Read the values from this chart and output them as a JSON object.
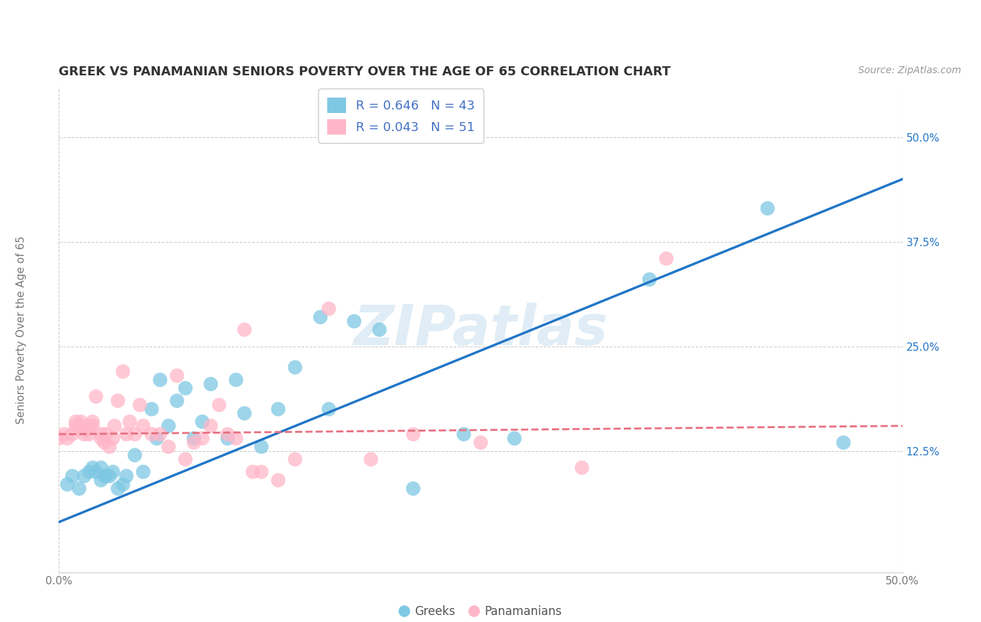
{
  "title": "GREEK VS PANAMANIAN SENIORS POVERTY OVER THE AGE OF 65 CORRELATION CHART",
  "source": "Source: ZipAtlas.com",
  "ylabel": "Seniors Poverty Over the Age of 65",
  "xlim": [
    0.0,
    0.5
  ],
  "ylim": [
    -0.02,
    0.56
  ],
  "xticks": [
    0.0,
    0.1,
    0.2,
    0.3,
    0.4,
    0.5
  ],
  "yticks": [
    0.125,
    0.25,
    0.375,
    0.5
  ],
  "xticklabels": [
    "0.0%",
    "",
    "",
    "",
    "",
    "50.0%"
  ],
  "yticklabels": [
    "12.5%",
    "25.0%",
    "37.5%",
    "50.0%"
  ],
  "greek_color": "#7ec8e3",
  "panamanian_color": "#ffb6c8",
  "greek_line_color": "#2176c7",
  "panamanian_line_color": "#e87080",
  "R_greek": 0.646,
  "N_greek": 43,
  "R_panamanian": 0.043,
  "N_panamanian": 51,
  "watermark": "ZIPatlas",
  "background_color": "#ffffff",
  "grid_color": "#cccccc",
  "legend_text_color": "#4472c4",
  "greek_x": [
    0.005,
    0.008,
    0.012,
    0.015,
    0.018,
    0.02,
    0.022,
    0.025,
    0.025,
    0.027,
    0.028,
    0.03,
    0.032,
    0.035,
    0.038,
    0.04,
    0.045,
    0.05,
    0.055,
    0.058,
    0.06,
    0.065,
    0.07,
    0.075,
    0.08,
    0.085,
    0.09,
    0.1,
    0.105,
    0.11,
    0.12,
    0.13,
    0.14,
    0.155,
    0.16,
    0.175,
    0.19,
    0.21,
    0.24,
    0.27,
    0.35,
    0.42,
    0.465
  ],
  "greek_y": [
    0.085,
    0.095,
    0.08,
    0.095,
    0.1,
    0.105,
    0.1,
    0.09,
    0.105,
    0.095,
    0.095,
    0.095,
    0.1,
    0.08,
    0.085,
    0.095,
    0.12,
    0.1,
    0.175,
    0.14,
    0.21,
    0.155,
    0.185,
    0.2,
    0.14,
    0.16,
    0.205,
    0.14,
    0.21,
    0.17,
    0.13,
    0.175,
    0.225,
    0.285,
    0.175,
    0.28,
    0.27,
    0.08,
    0.145,
    0.14,
    0.33,
    0.415,
    0.135
  ],
  "panamanian_x": [
    0.0,
    0.003,
    0.005,
    0.008,
    0.01,
    0.01,
    0.012,
    0.013,
    0.015,
    0.015,
    0.018,
    0.018,
    0.02,
    0.02,
    0.022,
    0.025,
    0.025,
    0.027,
    0.028,
    0.03,
    0.032,
    0.033,
    0.035,
    0.038,
    0.04,
    0.042,
    0.045,
    0.048,
    0.05,
    0.055,
    0.06,
    0.065,
    0.07,
    0.075,
    0.08,
    0.085,
    0.09,
    0.095,
    0.1,
    0.105,
    0.11,
    0.115,
    0.12,
    0.13,
    0.14,
    0.16,
    0.185,
    0.21,
    0.25,
    0.31,
    0.36
  ],
  "panamanian_y": [
    0.14,
    0.145,
    0.14,
    0.145,
    0.155,
    0.16,
    0.155,
    0.16,
    0.145,
    0.15,
    0.145,
    0.155,
    0.155,
    0.16,
    0.19,
    0.14,
    0.145,
    0.135,
    0.145,
    0.13,
    0.14,
    0.155,
    0.185,
    0.22,
    0.145,
    0.16,
    0.145,
    0.18,
    0.155,
    0.145,
    0.145,
    0.13,
    0.215,
    0.115,
    0.135,
    0.14,
    0.155,
    0.18,
    0.145,
    0.14,
    0.27,
    0.1,
    0.1,
    0.09,
    0.115,
    0.295,
    0.115,
    0.145,
    0.135,
    0.105,
    0.355
  ],
  "greek_line_x": [
    0.0,
    0.5
  ],
  "greek_line_y": [
    0.04,
    0.45
  ],
  "panamanian_line_x": [
    0.0,
    0.5
  ],
  "panamanian_line_y": [
    0.145,
    0.155
  ]
}
